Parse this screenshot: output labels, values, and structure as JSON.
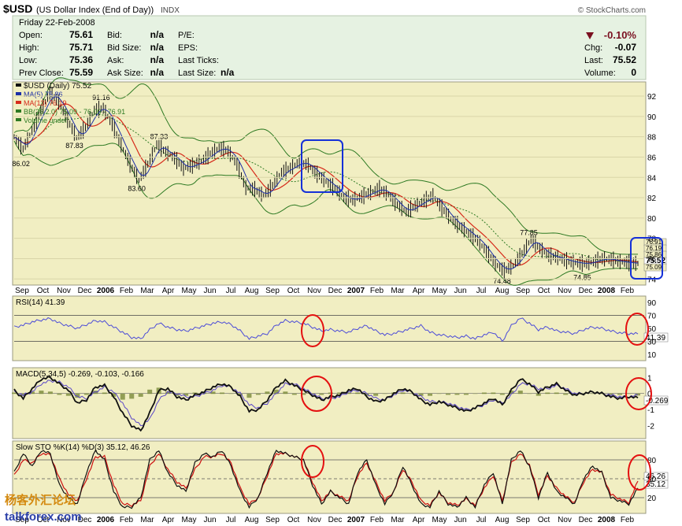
{
  "header": {
    "symbol": "$USD",
    "name": "(US Dollar Index (End of Day))",
    "exchange": "INDX",
    "copyright": "© StockCharts.com",
    "day_date": "Friday   22-Feb-2008",
    "quote_rows": [
      [
        [
          "Open:",
          "75.61"
        ],
        [
          "Bid:",
          "n/a"
        ],
        [
          "P/E:",
          ""
        ]
      ],
      [
        [
          "High:",
          "75.71"
        ],
        [
          "Bid Size:",
          "n/a"
        ],
        [
          "EPS:",
          ""
        ]
      ],
      [
        [
          "Low:",
          "75.36"
        ],
        [
          "Ask:",
          "n/a"
        ],
        [
          "Last Ticks:",
          ""
        ]
      ],
      [
        [
          "Prev Close:",
          "75.59"
        ],
        [
          "Ask Size:",
          "n/a"
        ],
        [
          "Last Size:",
          "n/a"
        ]
      ]
    ],
    "pct_change": "-0.10%",
    "change_rows": [
      [
        "Chg:",
        "-0.07"
      ],
      [
        "Last:",
        "75.52"
      ],
      [
        "Volume:",
        "0"
      ]
    ]
  },
  "watermark": {
    "cn": "杨客外汇论坛",
    "en": "talkforex.com"
  },
  "colors": {
    "panel_bg": "#f1eec2",
    "header_bg": "#e6f2e2",
    "price": "#111111",
    "ma5": "#1c2ea6",
    "ma13": "#d62a1a",
    "bb": "#2e7a23",
    "rsi": "#4a4ad8",
    "macd": "#111111",
    "signal": "#5a46c8",
    "hist": "#7a8a3a",
    "sto_k": "#111111",
    "sto_d": "#cc1111",
    "neg_arrow": "#7a1020",
    "annotation_red": "#e41010",
    "annotation_blue": "#1530d8"
  },
  "chart_data": [
    {
      "type": "line",
      "legend": [
        "$USD (Daily) 75.52",
        "MA(5) 75.86",
        "MA(13) 76.19",
        "BB(26,2.0) 75.09 - 76.00 - 76.91",
        "Volume undef"
      ],
      "y_ticks": [
        74,
        76,
        78,
        80,
        82,
        84,
        86,
        88,
        90,
        92
      ],
      "ylim": [
        73.4,
        93.4
      ],
      "x_range": [
        0,
        28
      ],
      "x": [
        0,
        1,
        2,
        3,
        4,
        5,
        6,
        7,
        8,
        9,
        10,
        11,
        12,
        13,
        14,
        15,
        16,
        17,
        18,
        19,
        20,
        21,
        22,
        23,
        24,
        25,
        26,
        27,
        28
      ],
      "close": [
        88.0,
        86.8,
        88.6,
        90.6,
        92.3,
        91.4,
        89.7,
        87.9,
        88.9,
        90.6,
        90.8,
        89.2,
        87.2,
        85.3,
        83.7,
        85.3,
        87.2,
        86.5,
        85.9,
        84.9,
        85.2,
        85.6,
        86.3,
        86.9,
        86.6,
        85.3,
        83.0,
        82.8,
        82.2
      ],
      "x2": [
        28,
        29,
        30,
        31,
        32,
        33,
        34,
        35,
        36,
        37,
        38,
        39,
        40,
        41,
        42,
        43,
        44,
        45,
        46,
        47,
        48,
        49,
        50,
        51,
        52,
        53,
        54,
        55,
        56,
        57,
        58,
        59,
        60,
        61,
        62,
        63,
        64,
        65,
        66,
        67,
        68,
        69,
        70
      ],
      "close2": [
        82.2,
        83.2,
        84.5,
        84.9,
        85.5,
        85.2,
        84.3,
        83.6,
        82.9,
        82.0,
        81.8,
        82.1,
        82.5,
        82.9,
        82.3,
        81.3,
        80.6,
        81.2,
        81.7,
        82.2,
        81.0,
        79.9,
        79.2,
        78.5,
        77.8,
        76.7,
        75.5,
        74.8,
        75.3,
        76.5,
        77.9,
        77.0,
        76.3,
        76.1,
        75.8,
        75.6,
        75.5,
        75.7,
        76.0,
        75.9,
        75.7,
        75.6,
        75.52
      ],
      "price_labels": [
        {
          "text": "86.02",
          "x": 1,
          "y": 86.02
        },
        {
          "text": "87.83",
          "x": 7,
          "y": 87.83
        },
        {
          "text": "91.16",
          "x": 10,
          "y": 91.16
        },
        {
          "text": "83.60",
          "x": 14,
          "y": 83.6
        },
        {
          "text": "87.33",
          "x": 16.5,
          "y": 87.33
        },
        {
          "text": "77.85",
          "x": 58,
          "y": 77.85
        },
        {
          "text": "74.48",
          "x": 55,
          "y": 74.48
        },
        {
          "text": "74.85",
          "x": 64,
          "y": 74.85
        }
      ],
      "right_tags": [
        "76.91",
        "76.19",
        "75.86",
        "75.52",
        "75.09"
      ]
    },
    {
      "type": "line",
      "legend": [
        "RSI(14) 41.39"
      ],
      "y_ticks": [
        10,
        30,
        50,
        70,
        90
      ],
      "ylim": [
        0,
        100
      ],
      "overbought": 70,
      "oversold": 30,
      "last_tag": "41.39",
      "values": [
        52,
        55,
        60,
        63,
        65,
        58,
        54,
        50,
        56,
        62,
        60,
        52,
        44,
        36,
        34,
        48,
        58,
        52,
        48,
        46,
        50,
        54,
        58,
        60,
        56,
        46,
        34,
        38,
        42,
        55,
        62,
        60,
        58,
        52,
        46,
        48,
        46,
        44,
        50,
        54,
        46,
        40,
        42,
        46,
        50,
        54,
        44,
        40,
        38,
        36,
        38,
        34,
        40,
        44,
        30,
        54,
        66,
        58,
        48,
        52,
        46,
        44,
        42,
        48,
        52,
        50,
        46,
        43,
        42,
        41.39
      ]
    },
    {
      "type": "line",
      "legend": [
        "MACD(5,34,5) -0.269, -0.103, -0.166"
      ],
      "y_ticks": [
        1,
        0,
        -1,
        -2
      ],
      "ylim": [
        -2.8,
        1.6
      ],
      "last_tag": "-0.269",
      "macd": [
        0.2,
        -0.3,
        0.3,
        0.9,
        1.0,
        0.6,
        0.2,
        -0.6,
        -0.4,
        0.4,
        0.5,
        -0.2,
        -1.2,
        -2.0,
        -2.3,
        -1.2,
        0.2,
        0.3,
        -0.2,
        -0.4,
        -0.1,
        0.1,
        0.4,
        0.6,
        0.4,
        -0.2,
        -1.1,
        -1.0,
        -0.4,
        0.4,
        0.8,
        0.5,
        0.2,
        -0.1,
        -0.4,
        -0.2,
        -0.1,
        0.2,
        0.3,
        -0.2,
        -0.5,
        -0.4,
        0.0,
        0.3,
        0.1,
        -0.4,
        -0.7,
        -0.5,
        -0.7,
        -0.9,
        -1.1,
        -0.9,
        -0.6,
        -0.3,
        -0.7,
        0.2,
        0.9,
        0.6,
        0.1,
        0.4,
        0.6,
        0.2,
        -0.1,
        0.0,
        0.1,
        0.0,
        -0.2,
        -0.3,
        -0.2,
        -0.269
      ],
      "signal": [
        0.1,
        -0.1,
        0.1,
        0.6,
        0.8,
        0.7,
        0.4,
        -0.2,
        -0.3,
        0.1,
        0.4,
        0.1,
        -0.6,
        -1.5,
        -2.0,
        -1.6,
        -0.4,
        0.1,
        0.0,
        -0.2,
        -0.2,
        0.0,
        0.2,
        0.5,
        0.4,
        0.0,
        -0.7,
        -0.9,
        -0.6,
        0.0,
        0.6,
        0.6,
        0.3,
        0.0,
        -0.3,
        -0.3,
        -0.2,
        0.1,
        0.2,
        0.0,
        -0.3,
        -0.4,
        -0.1,
        0.2,
        0.1,
        -0.2,
        -0.5,
        -0.5,
        -0.6,
        -0.8,
        -1.0,
        -0.9,
        -0.7,
        -0.4,
        -0.6,
        -0.1,
        0.6,
        0.6,
        0.3,
        0.3,
        0.5,
        0.3,
        0.0,
        0.0,
        0.1,
        0.0,
        -0.1,
        -0.2,
        -0.2,
        -0.103
      ]
    },
    {
      "type": "line",
      "legend": [
        "Slow STO %K(14) %D(3) 35.12, 46.26"
      ],
      "y_ticks": [
        80,
        50,
        20
      ],
      "ylim": [
        -5,
        110
      ],
      "tags": [
        "46.26",
        "35.12"
      ],
      "k": [
        60,
        90,
        70,
        95,
        90,
        40,
        20,
        10,
        60,
        95,
        80,
        30,
        5,
        5,
        20,
        80,
        95,
        60,
        40,
        30,
        75,
        90,
        85,
        95,
        70,
        30,
        5,
        20,
        60,
        95,
        90,
        85,
        80,
        40,
        10,
        30,
        20,
        10,
        60,
        80,
        40,
        10,
        30,
        70,
        40,
        10,
        5,
        30,
        10,
        5,
        20,
        5,
        40,
        60,
        10,
        80,
        95,
        70,
        20,
        60,
        30,
        20,
        10,
        50,
        70,
        60,
        20,
        15,
        10,
        35.12
      ],
      "d": [
        55,
        80,
        75,
        90,
        88,
        50,
        25,
        15,
        50,
        85,
        85,
        40,
        10,
        8,
        15,
        70,
        90,
        65,
        45,
        35,
        65,
        85,
        85,
        90,
        75,
        35,
        10,
        20,
        55,
        90,
        90,
        85,
        80,
        45,
        15,
        30,
        22,
        15,
        55,
        75,
        45,
        15,
        30,
        65,
        45,
        15,
        8,
        28,
        12,
        8,
        18,
        8,
        35,
        55,
        15,
        75,
        90,
        72,
        25,
        55,
        35,
        22,
        12,
        45,
        65,
        60,
        25,
        18,
        12,
        46.26
      ]
    }
  ],
  "x_axis_labels": [
    "Sep",
    "Oct",
    "Nov",
    "Dec",
    "2006",
    "Feb",
    "Mar",
    "Apr",
    "May",
    "Jun",
    "Jul",
    "Aug",
    "Sep",
    "Oct",
    "Nov",
    "Dec",
    "2007",
    "Feb",
    "Mar",
    "Apr",
    "May",
    "Jun",
    "Jul",
    "Aug",
    "Sep",
    "Oct",
    "Nov",
    "Dec",
    "2008",
    "Feb"
  ]
}
